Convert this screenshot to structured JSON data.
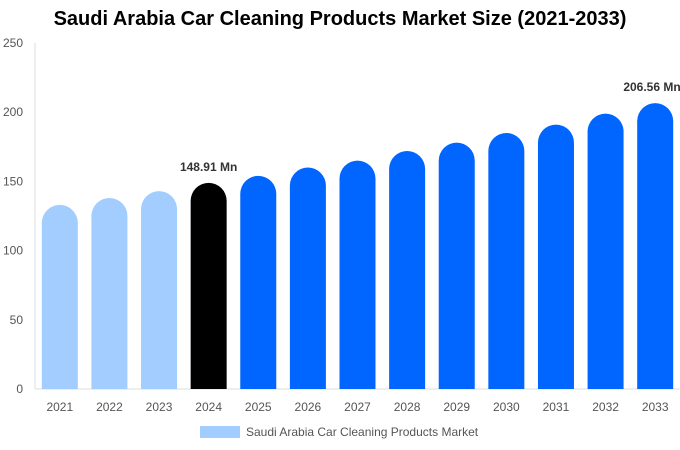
{
  "chart_data": {
    "type": "bar",
    "title": "Saudi Arabia Car Cleaning Products Market Size (2021-2033)",
    "categories": [
      "2021",
      "2022",
      "2023",
      "2024",
      "2025",
      "2026",
      "2027",
      "2028",
      "2029",
      "2030",
      "2031",
      "2032",
      "2033"
    ],
    "series": [
      {
        "name": "Saudi Arabia Car Cleaning Products Market",
        "values": [
          133,
          138,
          143,
          148.91,
          154,
          160,
          165,
          172,
          178,
          185,
          191,
          199,
          206.56
        ]
      }
    ],
    "data_labels": {
      "2024": "148.91 Mn",
      "2033": "206.56 Mn"
    },
    "ylim": [
      0,
      250
    ],
    "yticks": [
      0,
      50,
      100,
      150,
      200,
      250
    ],
    "grid": false,
    "legend_position": "bottom",
    "colors": {
      "historical": "#a3cdfe",
      "base_year": "#000000",
      "forecast": "#0066ff"
    }
  }
}
